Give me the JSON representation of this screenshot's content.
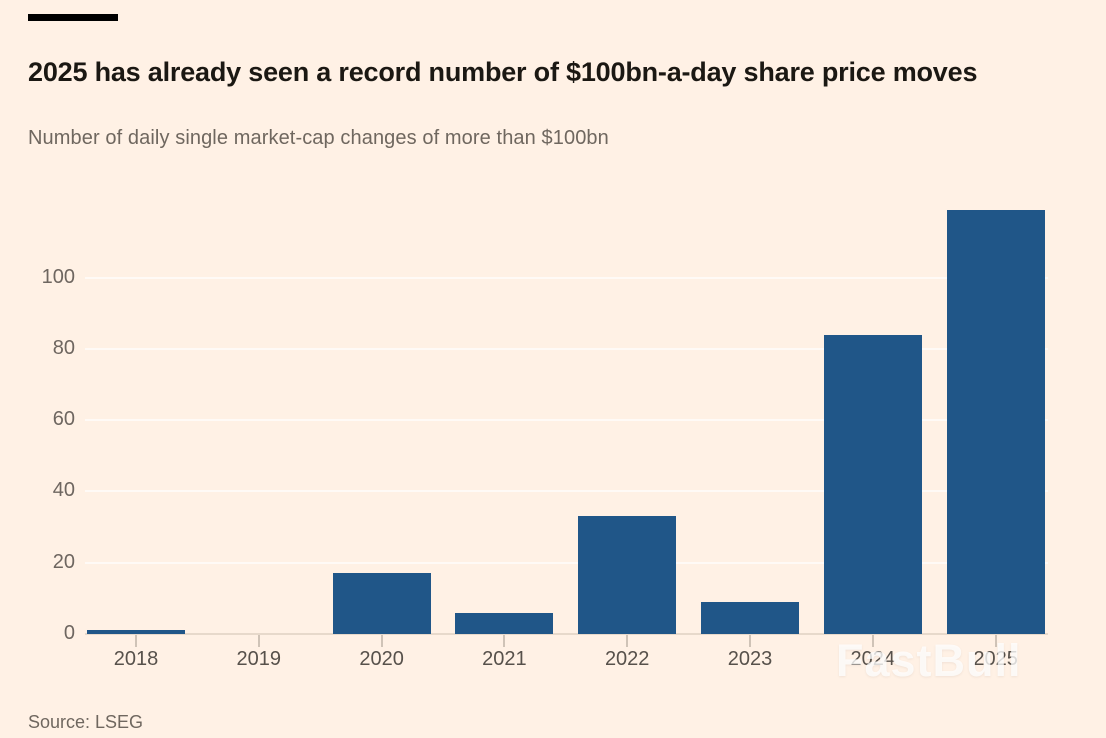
{
  "header": {
    "title": "2025 has already seen a record number of $100bn-a-day share price moves",
    "subtitle": "Number of daily single market-cap changes of more than $100bn"
  },
  "chart_data": {
    "type": "bar",
    "categories": [
      "2018",
      "2019",
      "2020",
      "2021",
      "2022",
      "2023",
      "2024",
      "2025"
    ],
    "values": [
      1,
      0,
      17,
      6,
      33,
      9,
      84,
      119
    ],
    "title": "2025 has already seen a record number of $100bn-a-day share price moves",
    "subtitle": "Number of daily single market-cap changes of more than $100bn",
    "xlabel": "",
    "ylabel": "",
    "ylim": [
      0,
      120
    ],
    "yticks": [
      0,
      20,
      40,
      60,
      80,
      100
    ],
    "grid": "horizontal-faint",
    "legend": "none",
    "bar_color": "#205688",
    "background_color": "#FFF1E5"
  },
  "footer": {
    "source": "Source: LSEG"
  },
  "watermark": {
    "text": "FastBull"
  }
}
